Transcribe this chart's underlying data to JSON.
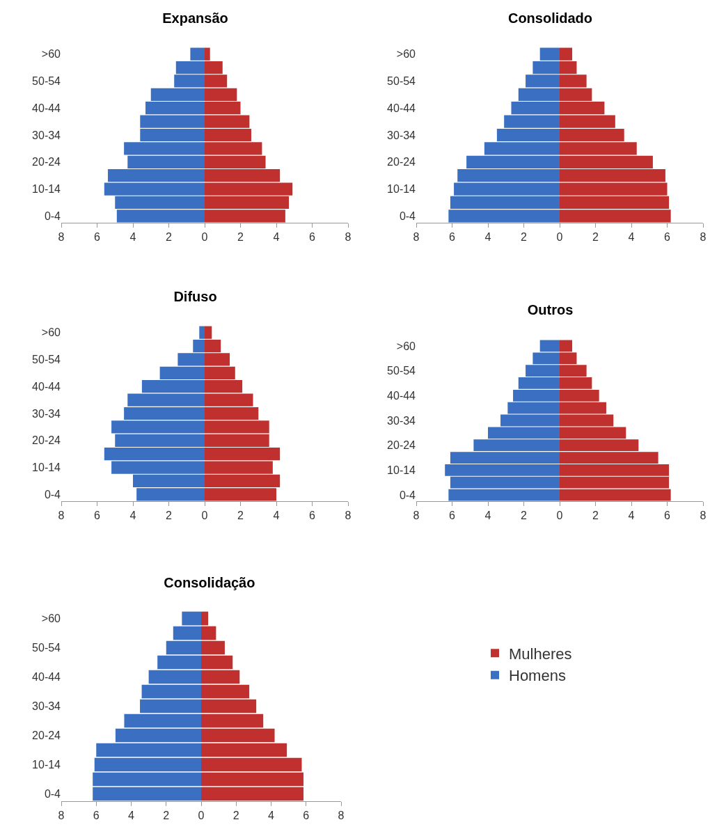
{
  "chart_data": [
    {
      "type": "bar",
      "title": "Expansão",
      "orientation": "horizontal",
      "stacked": true,
      "categories": [
        ">60",
        null,
        "50-54",
        null,
        "40-44",
        null,
        "30-34",
        null,
        "20-24",
        null,
        "10-14",
        null,
        "0-4"
      ],
      "xlim": [
        -8,
        8
      ],
      "xticks": [
        {
          "value": -8,
          "label": "8"
        },
        {
          "value": -6,
          "label": "6"
        },
        {
          "value": -4,
          "label": "4"
        },
        {
          "value": -2,
          "label": "2"
        },
        0,
        2,
        4,
        6,
        8
      ],
      "grid": false,
      "legend": false,
      "series": [
        {
          "color": "#3a6fc1",
          "values": [
            -0.8,
            -1.6,
            -1.7,
            -3.0,
            -3.3,
            -3.6,
            -3.6,
            -4.5,
            -4.3,
            -5.4,
            -5.6,
            -5.0,
            -4.9
          ]
        },
        {
          "color": "#c0302e",
          "values": [
            0.3,
            1.0,
            1.25,
            1.8,
            2.0,
            2.5,
            2.6,
            3.2,
            3.4,
            4.2,
            4.9,
            4.7,
            4.5
          ]
        }
      ]
    },
    {
      "type": "bar",
      "title": "Consolidado",
      "orientation": "horizontal",
      "stacked": true,
      "categories": [
        ">60",
        null,
        "50-54",
        null,
        "40-44",
        null,
        "30-34",
        null,
        "20-24",
        null,
        "10-14",
        null,
        "0-4"
      ],
      "xlim": [
        -8,
        8
      ],
      "xticks": [
        {
          "value": -8,
          "label": "8"
        },
        {
          "value": -6,
          "label": "6"
        },
        {
          "value": -4,
          "label": "4"
        },
        {
          "value": -2,
          "label": "2"
        },
        0,
        2,
        4,
        6,
        8
      ],
      "grid": false,
      "legend": false,
      "series": [
        {
          "color": "#3a6fc1",
          "values": [
            -1.1,
            -1.5,
            -1.9,
            -2.3,
            -2.7,
            -3.1,
            -3.5,
            -4.2,
            -5.2,
            -5.7,
            -5.9,
            -6.1,
            -6.2
          ]
        },
        {
          "color": "#c0302e",
          "values": [
            0.7,
            0.95,
            1.5,
            1.8,
            2.5,
            3.1,
            3.6,
            4.3,
            5.2,
            5.9,
            6.0,
            6.1,
            6.2
          ]
        }
      ]
    },
    {
      "type": "bar",
      "title": "Difuso",
      "orientation": "horizontal",
      "stacked": true,
      "categories": [
        ">60",
        null,
        "50-54",
        null,
        "40-44",
        null,
        "30-34",
        null,
        "20-24",
        null,
        "10-14",
        null,
        "0-4"
      ],
      "xlim": [
        -8,
        8
      ],
      "xticks": [
        {
          "value": -8,
          "label": "8"
        },
        {
          "value": -6,
          "label": "6"
        },
        {
          "value": -4,
          "label": "4"
        },
        {
          "value": -2,
          "label": "2"
        },
        0,
        2,
        4,
        6,
        8
      ],
      "grid": false,
      "legend": false,
      "series": [
        {
          "color": "#3a6fc1",
          "values": [
            -0.3,
            -0.65,
            -1.5,
            -2.5,
            -3.5,
            -4.3,
            -4.5,
            -5.2,
            -5.0,
            -5.6,
            -5.2,
            -4.0,
            -3.8
          ]
        },
        {
          "color": "#c0302e",
          "values": [
            0.4,
            0.9,
            1.4,
            1.7,
            2.1,
            2.7,
            3.0,
            3.6,
            3.6,
            4.2,
            3.8,
            4.2,
            4.0
          ]
        }
      ]
    },
    {
      "type": "bar",
      "title": "Outros",
      "orientation": "horizontal",
      "stacked": true,
      "categories": [
        ">60",
        null,
        "50-54",
        null,
        "40-44",
        null,
        "30-34",
        null,
        "20-24",
        null,
        "10-14",
        null,
        "0-4"
      ],
      "xlim": [
        -8,
        8
      ],
      "xticks": [
        {
          "value": -8,
          "label": "8"
        },
        {
          "value": -6,
          "label": "6"
        },
        {
          "value": -4,
          "label": "4"
        },
        {
          "value": -2,
          "label": "2"
        },
        0,
        2,
        4,
        6,
        8
      ],
      "grid": false,
      "legend": false,
      "series": [
        {
          "color": "#3a6fc1",
          "values": [
            -1.1,
            -1.5,
            -1.9,
            -2.3,
            -2.6,
            -2.9,
            -3.3,
            -4.0,
            -4.8,
            -6.1,
            -6.4,
            -6.1,
            -6.2
          ]
        },
        {
          "color": "#c0302e",
          "values": [
            0.7,
            0.95,
            1.5,
            1.8,
            2.2,
            2.6,
            3.0,
            3.7,
            4.4,
            5.5,
            6.1,
            6.1,
            6.2
          ]
        }
      ]
    },
    {
      "type": "bar",
      "title": "Consolidação",
      "orientation": "horizontal",
      "stacked": true,
      "categories": [
        ">60",
        null,
        "50-54",
        null,
        "40-44",
        null,
        "30-34",
        null,
        "20-24",
        null,
        "10-14",
        null,
        "0-4"
      ],
      "xlim": [
        -8,
        8
      ],
      "xticks": [
        {
          "value": -8,
          "label": "8"
        },
        {
          "value": -6,
          "label": "6"
        },
        {
          "value": -4,
          "label": "4"
        },
        {
          "value": -2,
          "label": "2"
        },
        0,
        2,
        4,
        6,
        8
      ],
      "grid": false,
      "legend": "right",
      "series": [
        {
          "name": "Homens",
          "color": "#3a6fc1",
          "values": [
            -1.1,
            -1.6,
            -2.0,
            -2.5,
            -3.0,
            -3.4,
            -3.5,
            -4.4,
            -4.9,
            -6.0,
            -6.1,
            -6.2,
            -6.2
          ]
        },
        {
          "name": "Mulheres",
          "color": "#c0302e",
          "values": [
            0.4,
            0.85,
            1.35,
            1.8,
            2.2,
            2.75,
            3.15,
            3.55,
            4.2,
            4.9,
            5.75,
            5.85,
            5.85
          ]
        }
      ]
    }
  ]
}
